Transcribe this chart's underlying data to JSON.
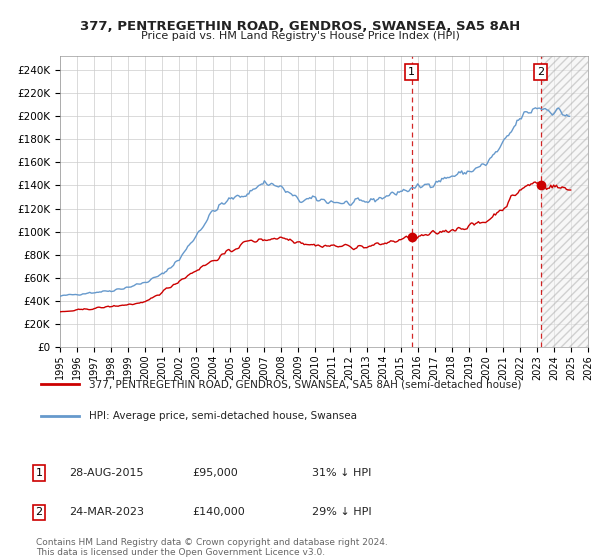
{
  "title": "377, PENTREGETHIN ROAD, GENDROS, SWANSEA, SA5 8AH",
  "subtitle": "Price paid vs. HM Land Registry's House Price Index (HPI)",
  "ylabel_ticks": [
    "£0",
    "£20K",
    "£40K",
    "£60K",
    "£80K",
    "£100K",
    "£120K",
    "£140K",
    "£160K",
    "£180K",
    "£200K",
    "£220K",
    "£240K"
  ],
  "ytick_values": [
    0,
    20000,
    40000,
    60000,
    80000,
    100000,
    120000,
    140000,
    160000,
    180000,
    200000,
    220000,
    240000
  ],
  "ylim": [
    0,
    252000
  ],
  "hpi_color": "#6699cc",
  "price_color": "#cc0000",
  "transaction1_date": 2015.65,
  "transaction1_price": 95000,
  "transaction2_date": 2023.23,
  "transaction2_price": 140000,
  "legend_line1": "377, PENTREGETHIN ROAD, GENDROS, SWANSEA, SA5 8AH (semi-detached house)",
  "legend_line2": "HPI: Average price, semi-detached house, Swansea",
  "table_row1": [
    "1",
    "28-AUG-2015",
    "£95,000",
    "31% ↓ HPI"
  ],
  "table_row2": [
    "2",
    "24-MAR-2023",
    "£140,000",
    "29% ↓ HPI"
  ],
  "footnote1": "Contains HM Land Registry data © Crown copyright and database right 2024.",
  "footnote2": "This data is licensed under the Open Government Licence v3.0.",
  "background_color": "#ffffff",
  "grid_color": "#cccccc"
}
